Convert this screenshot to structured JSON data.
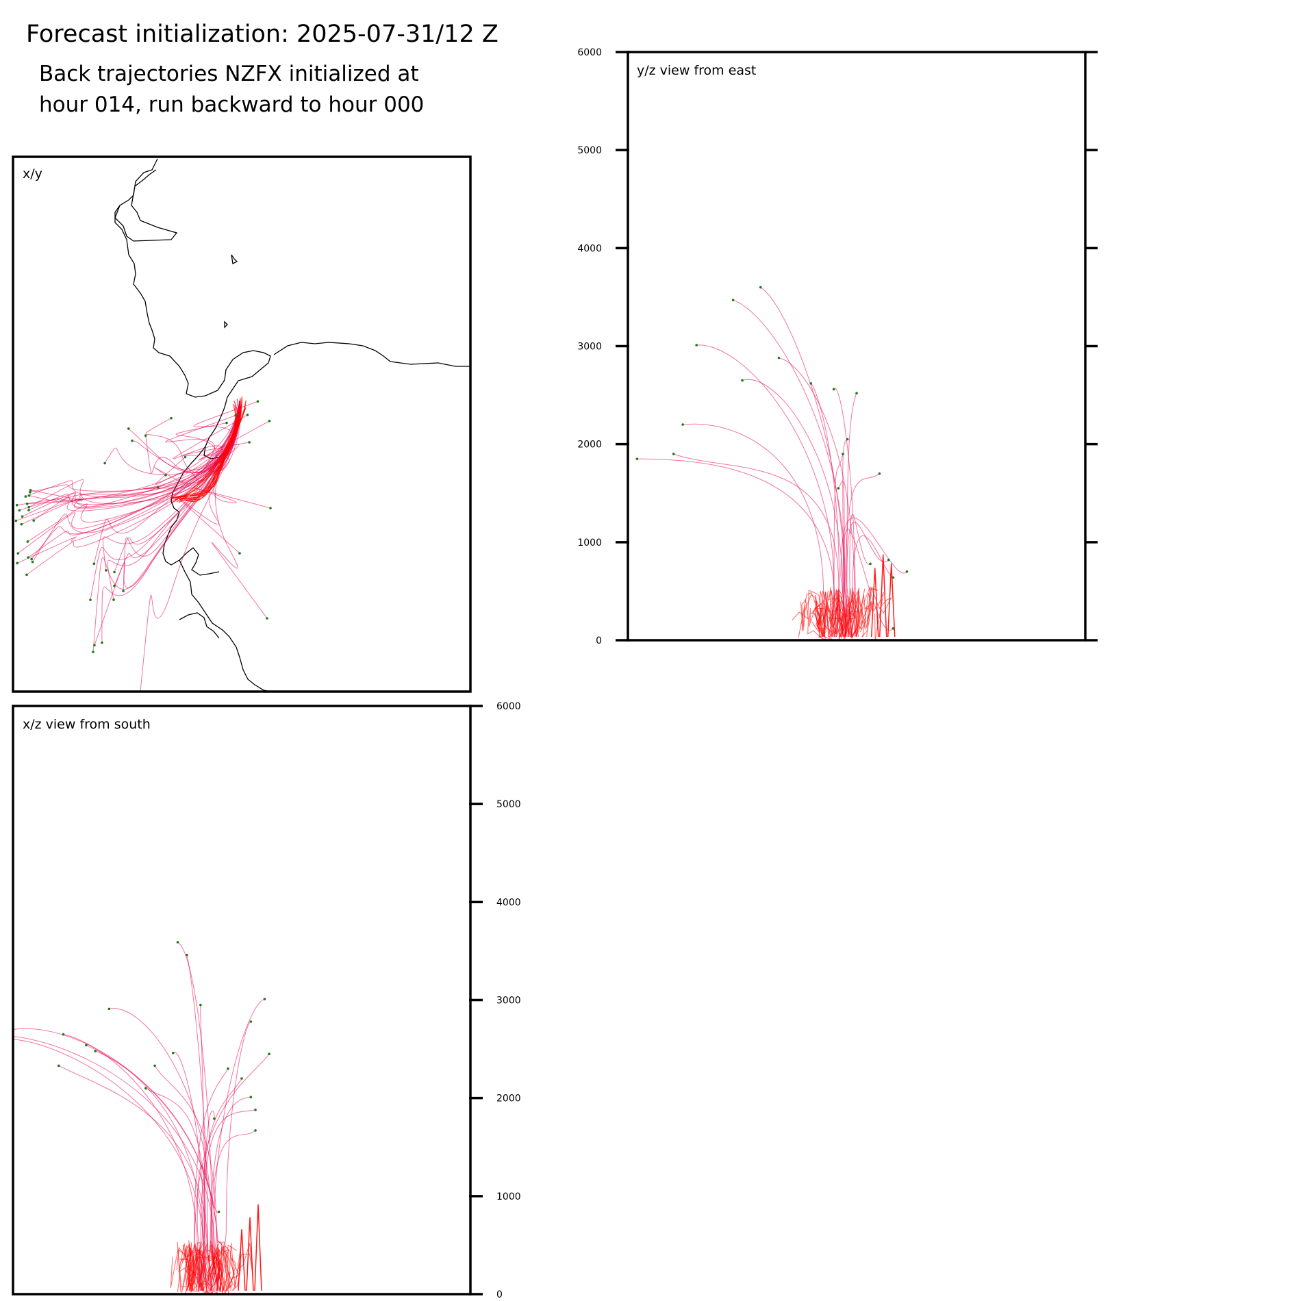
{
  "figure": {
    "title": "Forecast initialization: 2025-07-31/12 Z",
    "subtitle_line1": "Back trajectories NZFX initialized at",
    "subtitle_line2": "hour 014, run backward to hour 000"
  },
  "colors": {
    "trajectory_line": "#e8004c",
    "trajectory_core": "#ff0000",
    "endpoint_marker": "#1a7a1a",
    "coastline": "#000000",
    "axes": "#000000"
  },
  "chart_data": [
    {
      "id": "xy",
      "type": "line",
      "panel_label": "x/y",
      "description_visible": false,
      "has_coastline": true,
      "ticks": []
    },
    {
      "id": "yz",
      "type": "line",
      "panel_label": "y/z view from east",
      "ylabel": "",
      "ylim": [
        0,
        6000
      ],
      "yticks": [
        "0",
        "1000",
        "2000",
        "3000",
        "4000",
        "5000",
        "6000"
      ],
      "tick_side": "left",
      "endpoints": [
        {
          "x": 0.15,
          "z": 3010
        },
        {
          "x": 0.23,
          "z": 3470
        },
        {
          "x": 0.29,
          "z": 3600
        },
        {
          "x": 0.25,
          "z": 2650
        },
        {
          "x": 0.33,
          "z": 2880
        },
        {
          "x": 0.12,
          "z": 2200
        },
        {
          "x": 0.4,
          "z": 2620
        },
        {
          "x": 0.45,
          "z": 2560
        },
        {
          "x": 0.48,
          "z": 2050
        },
        {
          "x": 0.47,
          "z": 1900
        },
        {
          "x": 0.46,
          "z": 1550
        },
        {
          "x": 0.5,
          "z": 2520
        },
        {
          "x": 0.55,
          "z": 1700
        },
        {
          "x": 0.02,
          "z": 1850
        },
        {
          "x": 0.1,
          "z": 1900
        },
        {
          "x": 0.57,
          "z": 820
        },
        {
          "x": 0.53,
          "z": 780
        },
        {
          "x": 0.58,
          "z": 120
        },
        {
          "x": 0.61,
          "z": 700
        },
        {
          "x": 0.58,
          "z": 640
        }
      ]
    },
    {
      "id": "xz",
      "type": "line",
      "panel_label": "x/z view from south",
      "ylabel": "",
      "ylim": [
        0,
        6000
      ],
      "yticks": [
        "0",
        "1000",
        "2000",
        "3000",
        "4000",
        "5000",
        "6000"
      ],
      "tick_side": "right",
      "endpoints": [
        {
          "x": 0.0,
          "z": 2630
        },
        {
          "x": 0.0,
          "z": 2600
        },
        {
          "x": 0.0,
          "z": 2700
        },
        {
          "x": 0.36,
          "z": 3590
        },
        {
          "x": 0.38,
          "z": 3460
        },
        {
          "x": 0.41,
          "z": 2950
        },
        {
          "x": 0.55,
          "z": 3010
        },
        {
          "x": 0.56,
          "z": 2450
        },
        {
          "x": 0.52,
          "z": 2780
        },
        {
          "x": 0.21,
          "z": 2910
        },
        {
          "x": 0.11,
          "z": 2650
        },
        {
          "x": 0.16,
          "z": 2540
        },
        {
          "x": 0.31,
          "z": 2330
        },
        {
          "x": 0.35,
          "z": 2460
        },
        {
          "x": 0.47,
          "z": 2300
        },
        {
          "x": 0.5,
          "z": 2200
        },
        {
          "x": 0.53,
          "z": 1880
        },
        {
          "x": 0.52,
          "z": 2010
        },
        {
          "x": 0.1,
          "z": 2330
        },
        {
          "x": 0.18,
          "z": 2480
        },
        {
          "x": 0.29,
          "z": 2100
        },
        {
          "x": 0.53,
          "z": 1670
        },
        {
          "x": 0.44,
          "z": 1790
        },
        {
          "x": 0.45,
          "z": 840
        }
      ]
    }
  ]
}
